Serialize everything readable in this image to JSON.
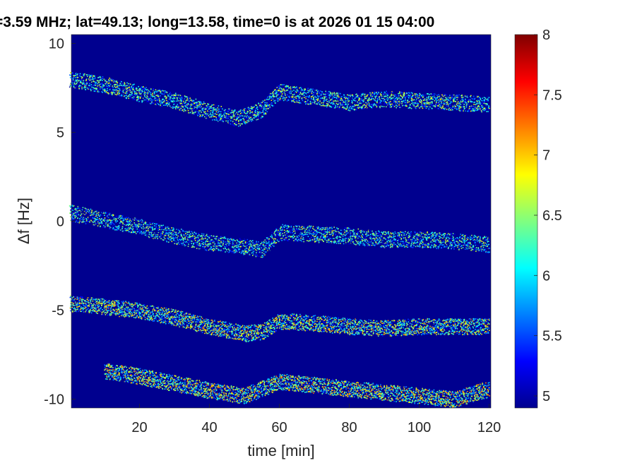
{
  "chart_data": {
    "type": "heatmap",
    "title": "=3.59 MHz;  lat=49.13; long=13.58, time=0 is at 2026 01 15 04:00",
    "xlabel": "time [min]",
    "ylabel": "Δf [Hz]",
    "xlim": [
      0,
      120
    ],
    "ylim": [
      -10.5,
      10.5
    ],
    "xticks": [
      20,
      40,
      60,
      80,
      100,
      120
    ],
    "yticks": [
      10,
      5,
      0,
      -5,
      -10
    ],
    "xtick_labels": [
      "20",
      "40",
      "60",
      "80",
      "100",
      "120"
    ],
    "ytick_labels": [
      "10",
      "5",
      "0",
      "-5",
      "-10"
    ],
    "colorbar": {
      "range": [
        4.9,
        8
      ],
      "ticks": [
        8,
        7.5,
        7,
        6.5,
        6,
        5.5,
        5
      ],
      "tick_labels": [
        "8",
        "7.5",
        "7",
        "6.5",
        "6",
        "5.5",
        "5"
      ],
      "colormap": "jet"
    },
    "background_value": 4.9,
    "traces": [
      {
        "points": [
          [
            0,
            8.0
          ],
          [
            10,
            7.7
          ],
          [
            20,
            7.2
          ],
          [
            30,
            6.8
          ],
          [
            40,
            6.2
          ],
          [
            48,
            5.8
          ],
          [
            55,
            6.3
          ],
          [
            60,
            7.3
          ],
          [
            70,
            7.0
          ],
          [
            80,
            6.7
          ],
          [
            90,
            6.9
          ],
          [
            100,
            6.8
          ],
          [
            110,
            6.7
          ],
          [
            120,
            6.6
          ]
        ],
        "intensity": 5.8
      },
      {
        "points": [
          [
            0,
            0.5
          ],
          [
            10,
            0.1
          ],
          [
            20,
            -0.3
          ],
          [
            30,
            -0.8
          ],
          [
            40,
            -1.2
          ],
          [
            50,
            -1.4
          ],
          [
            55,
            -1.6
          ],
          [
            60,
            -0.6
          ],
          [
            70,
            -0.7
          ],
          [
            80,
            -0.8
          ],
          [
            90,
            -1.0
          ],
          [
            100,
            -1.0
          ],
          [
            110,
            -1.1
          ],
          [
            120,
            -1.3
          ]
        ],
        "intensity": 5.7
      },
      {
        "points": [
          [
            0,
            -4.6
          ],
          [
            10,
            -4.8
          ],
          [
            20,
            -5.0
          ],
          [
            30,
            -5.4
          ],
          [
            40,
            -5.9
          ],
          [
            50,
            -6.3
          ],
          [
            55,
            -6.2
          ],
          [
            60,
            -5.6
          ],
          [
            70,
            -5.7
          ],
          [
            80,
            -5.9
          ],
          [
            90,
            -6.0
          ],
          [
            100,
            -5.9
          ],
          [
            110,
            -5.9
          ],
          [
            120,
            -5.9
          ]
        ],
        "intensity": 6.1
      },
      {
        "points": [
          [
            10,
            -8.4
          ],
          [
            20,
            -8.7
          ],
          [
            30,
            -9.1
          ],
          [
            40,
            -9.5
          ],
          [
            50,
            -9.8
          ],
          [
            60,
            -9.0
          ],
          [
            70,
            -9.2
          ],
          [
            80,
            -9.4
          ],
          [
            90,
            -9.6
          ],
          [
            100,
            -9.8
          ],
          [
            110,
            -10.0
          ],
          [
            120,
            -9.4
          ]
        ],
        "intensity": 6.2
      }
    ]
  }
}
